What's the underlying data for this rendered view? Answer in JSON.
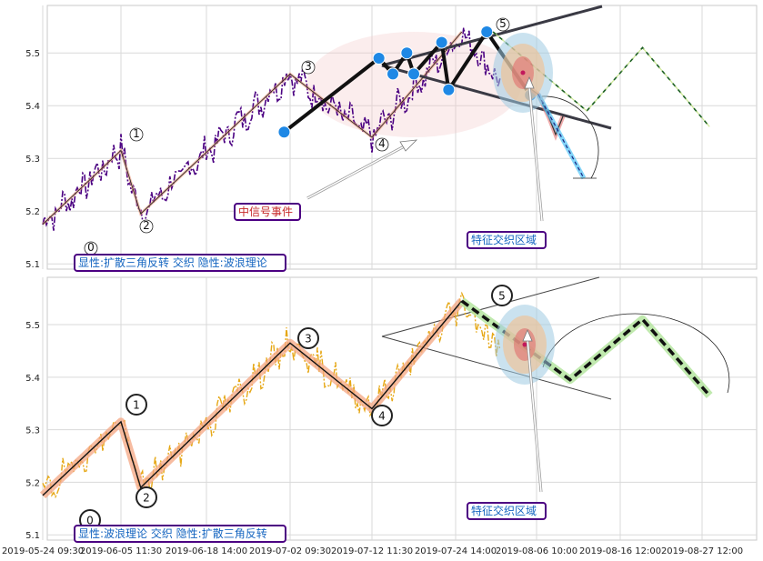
{
  "chart_data": [
    {
      "type": "line",
      "panel": "top",
      "ylim": [
        5.09,
        5.59
      ],
      "yticks": [
        "5.1",
        "5.2",
        "5.3",
        "5.4",
        "5.5"
      ],
      "grid": true,
      "labels": {
        "box_bottom": "显性:扩散三角反转 交织 隐性:波浪理论",
        "signal": "中信号事件",
        "zone": "特征交织区域"
      },
      "wave_labels": [
        "0",
        "1",
        "2",
        "3",
        "4",
        "5"
      ],
      "price_series": {
        "name": "",
        "color": "#4b0082"
      },
      "wave_points": [
        [
          "2019-05-24",
          5.175
        ],
        [
          "2019-06-05",
          5.315
        ],
        [
          "2019-06-08",
          5.195
        ],
        [
          "2019-07-02",
          5.46
        ],
        [
          "2019-07-12",
          5.34
        ],
        [
          "2019-07-25",
          5.54
        ]
      ],
      "triangle_points": [
        [
          "2019-07-01",
          5.35
        ],
        [
          "2019-07-13",
          5.49
        ],
        [
          "2019-07-15",
          5.46
        ],
        [
          "2019-07-17",
          5.5
        ],
        [
          "2019-07-18",
          5.46
        ],
        [
          "2019-07-22",
          5.52
        ],
        [
          "2019-07-23",
          5.43
        ],
        [
          "2019-07-29",
          5.54
        ],
        [
          "2019-08-05",
          5.42
        ]
      ],
      "projection": [
        [
          "2019-07-30",
          5.54
        ],
        [
          "2019-08-12",
          5.39
        ],
        [
          "2019-08-19",
          5.51
        ],
        [
          "2019-08-28",
          5.36
        ]
      ]
    },
    {
      "type": "line",
      "panel": "bottom",
      "ylim": [
        5.09,
        5.59
      ],
      "yticks": [
        "5.1",
        "5.2",
        "5.3",
        "5.4",
        "5.5"
      ],
      "xticks": [
        "2019-05-24 09:30",
        "2019-06-05 11:30",
        "2019-06-18 14:00",
        "2019-07-02 09:30",
        "2019-07-12 11:30",
        "2019-07-24 14:00",
        "2019-08-06 10:00",
        "2019-08-16 12:00",
        "2019-08-27 12:00"
      ],
      "grid": true,
      "labels": {
        "box_bottom": "显性:波浪理论 交织 隐性:扩散三角反转",
        "zone": "特征交织区域"
      },
      "wave_labels": [
        "0",
        "1",
        "2",
        "3",
        "4",
        "5"
      ],
      "price_series": {
        "name": "",
        "color": "#e6a817"
      },
      "wave_points": [
        [
          "2019-05-24",
          5.175
        ],
        [
          "2019-06-05",
          5.315
        ],
        [
          "2019-06-08",
          5.19
        ],
        [
          "2019-07-02",
          5.465
        ],
        [
          "2019-07-12",
          5.34
        ],
        [
          "2019-07-25",
          5.545
        ]
      ],
      "projection": [
        [
          "2019-07-25",
          5.545
        ],
        [
          "2019-08-10",
          5.395
        ],
        [
          "2019-08-19",
          5.51
        ],
        [
          "2019-08-28",
          5.365
        ]
      ]
    }
  ]
}
